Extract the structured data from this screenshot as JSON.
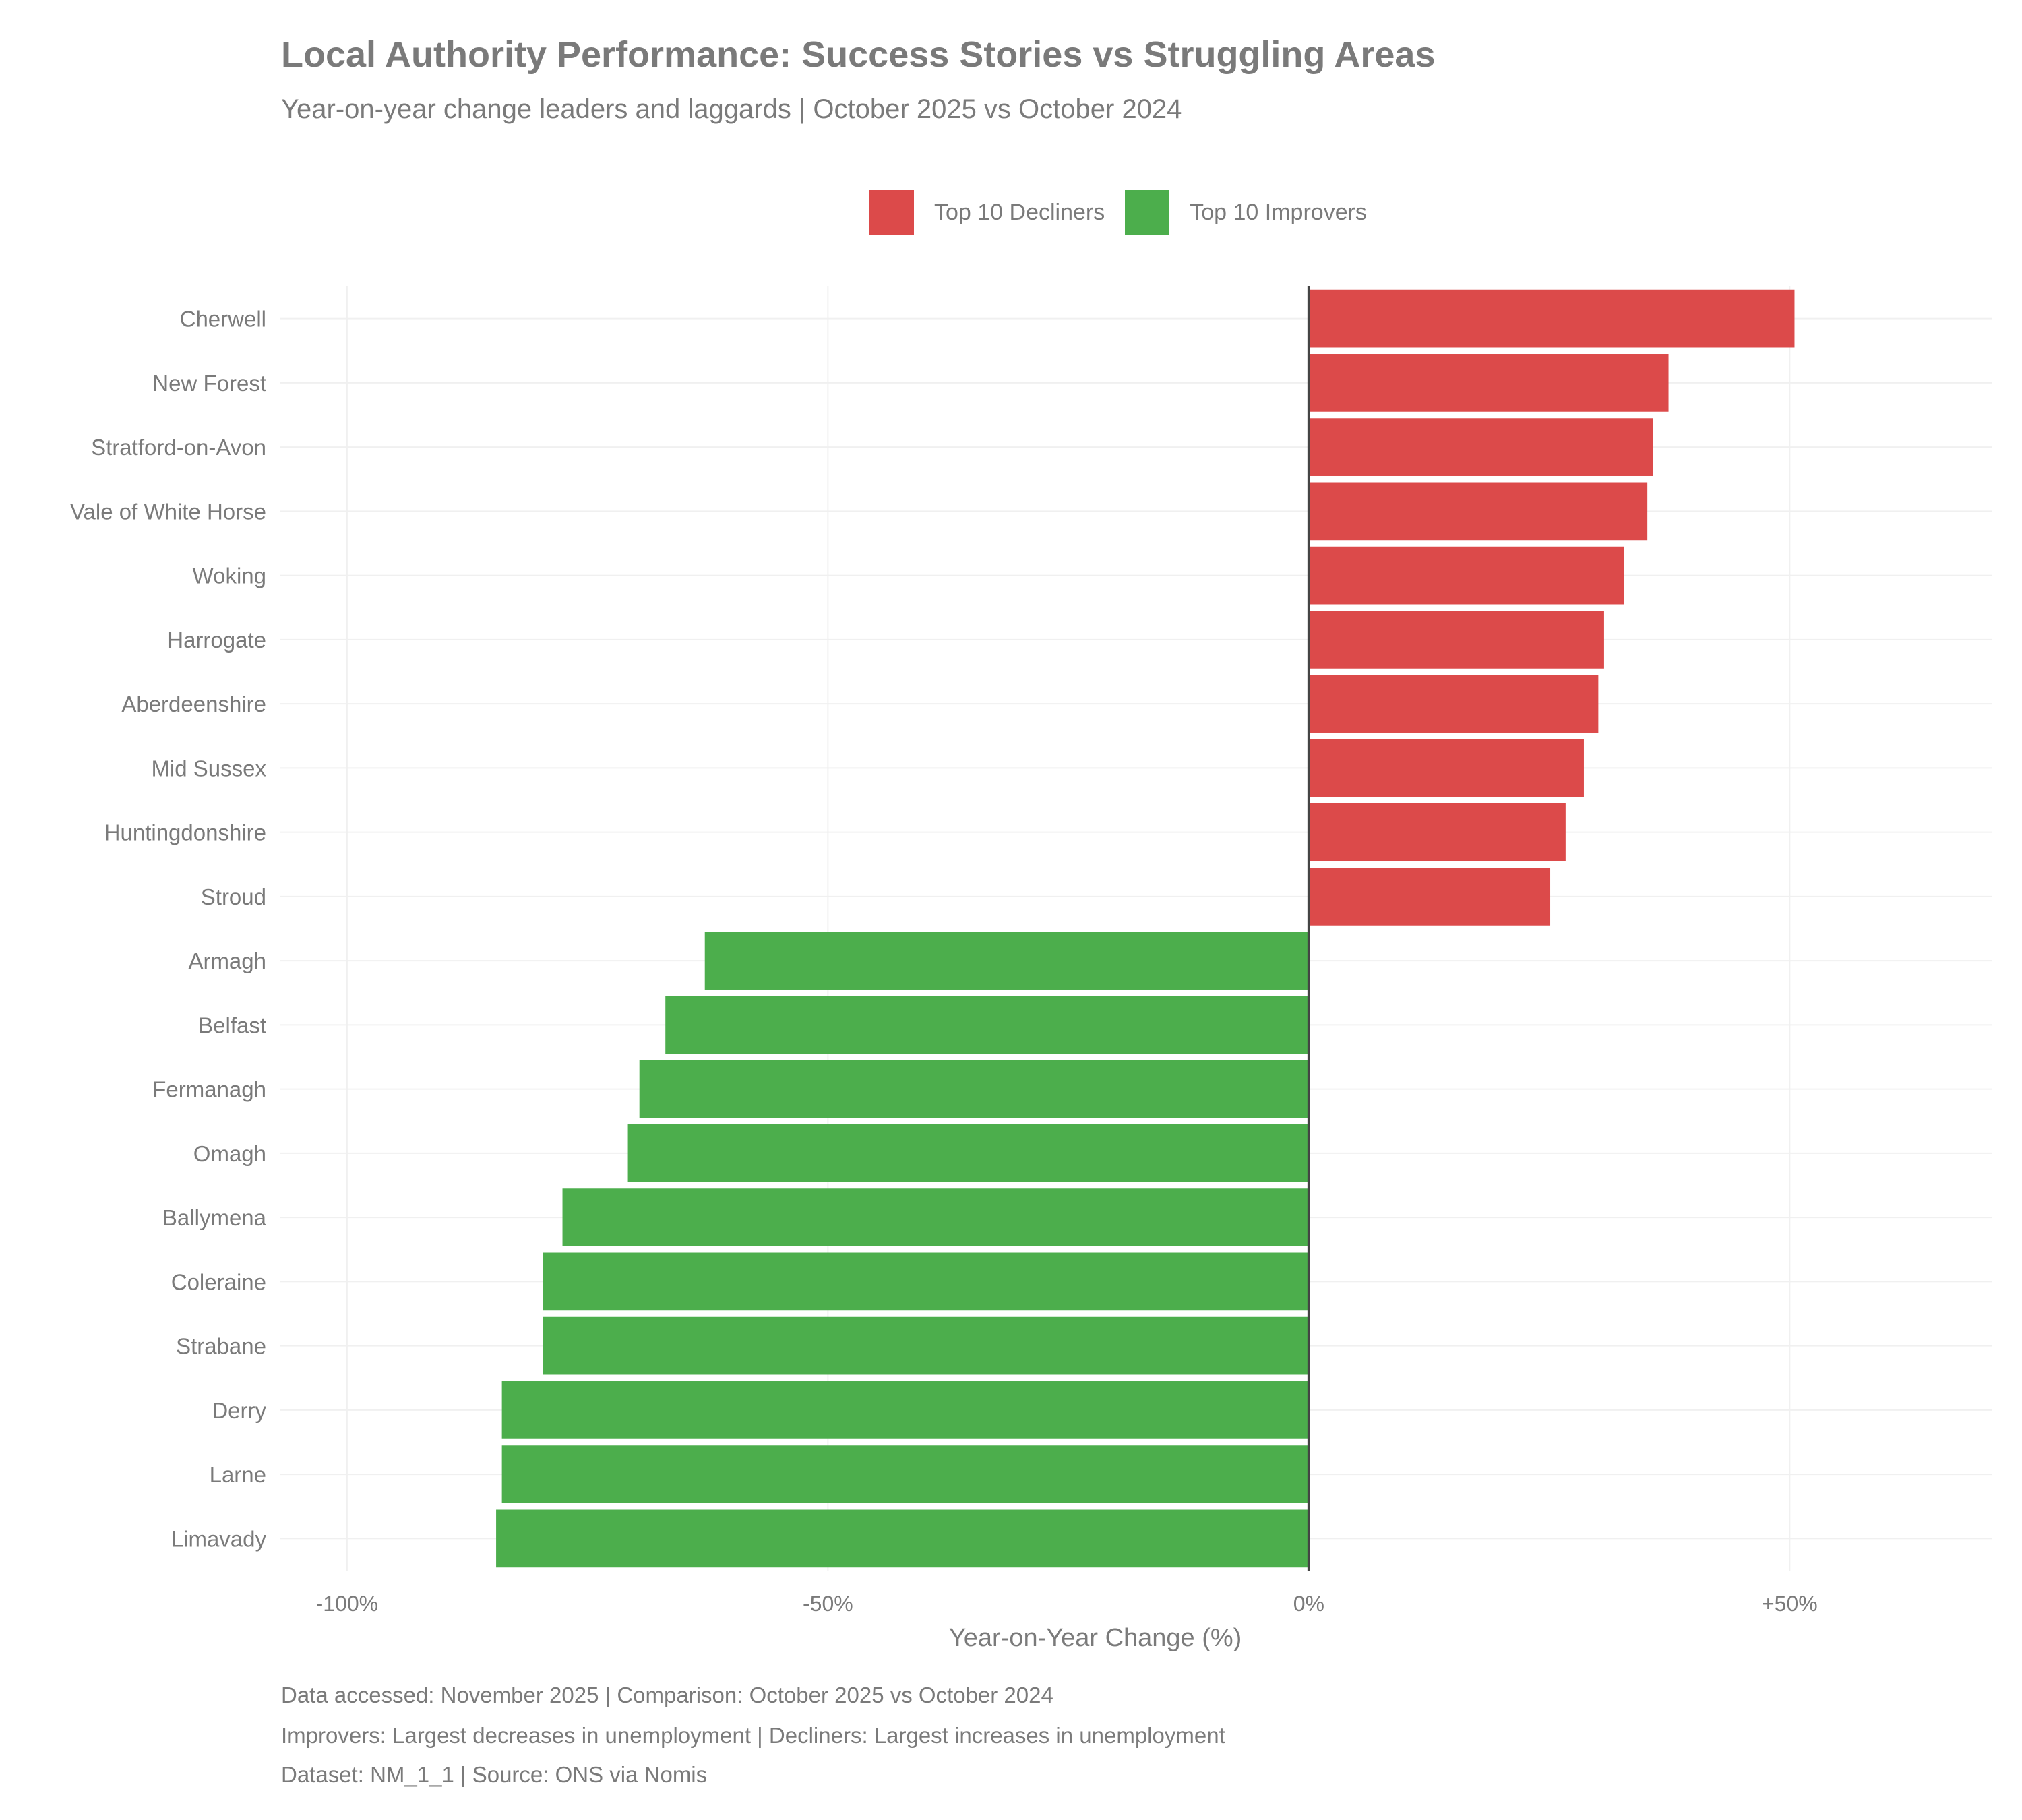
{
  "chart_data": {
    "type": "bar",
    "orientation": "horizontal",
    "title": "Local Authority Performance: Success Stories vs Struggling Areas",
    "subtitle": "Year-on-year change leaders and laggards | October 2025 vs October 2024",
    "xlabel": "Year-on-Year Change (%)",
    "ylabel": "",
    "xlim": [
      -107,
      71
    ],
    "xticks": [
      -100,
      -50,
      0,
      50
    ],
    "xtick_labels": [
      "-100%",
      "-50%",
      "0%",
      "+50%"
    ],
    "grid": true,
    "legend_position": "top",
    "legend": [
      {
        "name": "Top 10 Decliners",
        "color": "#dc4a4a"
      },
      {
        "name": "Top 10 Improvers",
        "color": "#4cae4c"
      }
    ],
    "categories": [
      "Cherwell",
      "New Forest",
      "Stratford-on-Avon",
      "Vale of White Horse",
      "Woking",
      "Harrogate",
      "Aberdeenshire",
      "Mid Sussex",
      "Huntingdonshire",
      "Stroud",
      "Armagh",
      "Belfast",
      "Fermanagh",
      "Omagh",
      "Ballymena",
      "Coleraine",
      "Strabane",
      "Derry",
      "Larne",
      "Limavady"
    ],
    "values": [
      50.5,
      37.4,
      35.8,
      35.2,
      32.8,
      30.7,
      30.1,
      28.6,
      26.7,
      25.1,
      -62.8,
      -66.9,
      -69.6,
      -70.8,
      -77.6,
      -79.6,
      -79.6,
      -83.9,
      -83.9,
      -84.5
    ],
    "groups": [
      "Top 10 Decliners",
      "Top 10 Decliners",
      "Top 10 Decliners",
      "Top 10 Decliners",
      "Top 10 Decliners",
      "Top 10 Decliners",
      "Top 10 Decliners",
      "Top 10 Decliners",
      "Top 10 Decliners",
      "Top 10 Decliners",
      "Top 10 Improvers",
      "Top 10 Improvers",
      "Top 10 Improvers",
      "Top 10 Improvers",
      "Top 10 Improvers",
      "Top 10 Improvers",
      "Top 10 Improvers",
      "Top 10 Improvers",
      "Top 10 Improvers",
      "Top 10 Improvers"
    ]
  },
  "captions": [
    "Data accessed: November 2025 | Comparison: October 2025 vs October 2024",
    "Improvers: Largest decreases in unemployment | Decliners: Largest increases in unemployment",
    "Dataset: NM_1_1 | Source: ONS via Nomis"
  ]
}
